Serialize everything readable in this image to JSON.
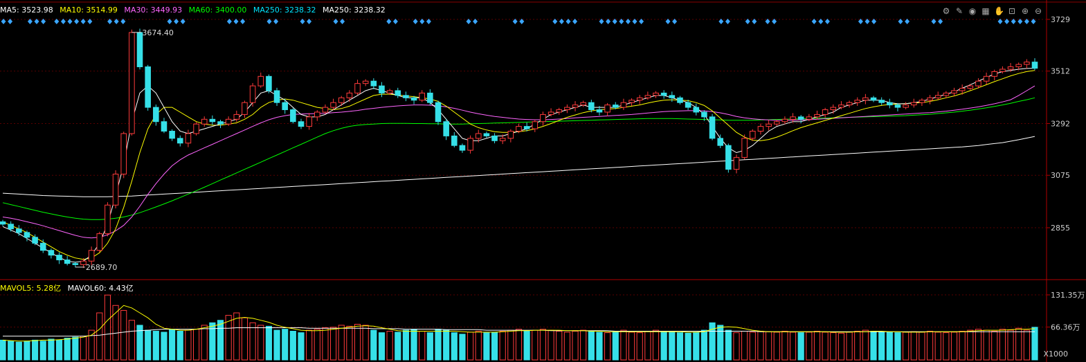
{
  "ma_legend": [
    {
      "label": "MA5: 3523.98",
      "color": "#ffffff"
    },
    {
      "label": "MA10: 3514.99",
      "color": "#ffff00"
    },
    {
      "label": "MA30: 3449.93",
      "color": "#ff66ff"
    },
    {
      "label": "MA60: 3400.00",
      "color": "#00ff00"
    },
    {
      "label": "MA250: 3238.32",
      "color": "#00e5ff"
    },
    {
      "label": "MA250: 3238.32",
      "color": "#ffffff"
    }
  ],
  "vol_legend": [
    {
      "label": "MAVOL5: 5.28亿",
      "color": "#ffff00"
    },
    {
      "label": "MAVOL60: 4.43亿",
      "color": "#ffffff"
    }
  ],
  "up_arrow": "↑",
  "toolbar_icons": [
    "gear-icon",
    "brush-icon",
    "eye-icon",
    "hand-icon",
    "lock-icon",
    "zoom-in-icon",
    "zoom-out-icon"
  ],
  "vol_unit": "X1000",
  "colors": {
    "up": "#ff3b3b",
    "down": "#36e0e8",
    "signal": "#3aa6ff"
  },
  "chart_data": [
    {
      "type": "candlestick",
      "price_ticks": [
        "3729",
        "3512",
        "3292",
        "3075",
        "2855"
      ],
      "price_tick_values": [
        3729,
        3512,
        3292,
        3075,
        2855
      ],
      "ylim": [
        2600,
        3800
      ],
      "annotations": [
        {
          "text": "3674.40",
          "value": 3674.4
        },
        {
          "text": "2689.70",
          "value": 2689.7
        }
      ],
      "closes": [
        2870,
        2850,
        2835,
        2815,
        2790,
        2760,
        2740,
        2720,
        2705,
        2700,
        2715,
        2760,
        2830,
        2950,
        3080,
        3250,
        3674,
        3530,
        3360,
        3300,
        3260,
        3230,
        3210,
        3250,
        3290,
        3310,
        3300,
        3290,
        3310,
        3330,
        3380,
        3450,
        3490,
        3430,
        3380,
        3350,
        3300,
        3280,
        3320,
        3340,
        3360,
        3380,
        3400,
        3420,
        3460,
        3470,
        3450,
        3420,
        3430,
        3410,
        3400,
        3390,
        3420,
        3380,
        3300,
        3240,
        3200,
        3180,
        3230,
        3250,
        3240,
        3220,
        3230,
        3260,
        3280,
        3270,
        3300,
        3330,
        3340,
        3350,
        3360,
        3370,
        3380,
        3350,
        3340,
        3370,
        3360,
        3380,
        3390,
        3400,
        3410,
        3420,
        3410,
        3400,
        3380,
        3360,
        3340,
        3320,
        3230,
        3200,
        3100,
        3150,
        3230,
        3260,
        3280,
        3290,
        3300,
        3310,
        3320,
        3310,
        3320,
        3330,
        3350,
        3360,
        3370,
        3380,
        3390,
        3400,
        3390,
        3380,
        3370,
        3360,
        3370,
        3380,
        3390,
        3400,
        3410,
        3420,
        3430,
        3440,
        3450,
        3470,
        3490,
        3510,
        3520,
        3530,
        3540,
        3550,
        3524
      ],
      "ma5": [
        2860,
        2845,
        2830,
        2810,
        2790,
        2770,
        2750,
        2730,
        2715,
        2710,
        2715,
        2740,
        2790,
        2870,
        2990,
        3120,
        3300,
        3420,
        3450,
        3420,
        3360,
        3300,
        3260,
        3250,
        3260,
        3270,
        3280,
        3290,
        3300,
        3310,
        3340,
        3380,
        3420,
        3430,
        3410,
        3390,
        3360,
        3330,
        3320,
        3320,
        3330,
        3350,
        3370,
        3390,
        3410,
        3430,
        3440,
        3430,
        3420,
        3410,
        3400,
        3400,
        3400,
        3380,
        3350,
        3310,
        3270,
        3230,
        3220,
        3220,
        3230,
        3240,
        3240,
        3250,
        3260,
        3270,
        3290,
        3310,
        3330,
        3340,
        3350,
        3360,
        3370,
        3360,
        3360,
        3360,
        3360,
        3370,
        3380,
        3390,
        3400,
        3410,
        3410,
        3400,
        3390,
        3380,
        3360,
        3330,
        3280,
        3230,
        3190,
        3170,
        3180,
        3200,
        3230,
        3260,
        3280,
        3290,
        3300,
        3300,
        3310,
        3320,
        3330,
        3340,
        3360,
        3370,
        3380,
        3390,
        3390,
        3390,
        3380,
        3375,
        3375,
        3380,
        3385,
        3395,
        3405,
        3415,
        3425,
        3440,
        3455,
        3470,
        3485,
        3500,
        3510,
        3515,
        3520,
        3523,
        3524
      ],
      "ma10": [
        2880,
        2865,
        2850,
        2835,
        2815,
        2795,
        2775,
        2755,
        2740,
        2728,
        2722,
        2728,
        2750,
        2790,
        2850,
        2940,
        3050,
        3170,
        3270,
        3330,
        3360,
        3360,
        3340,
        3320,
        3300,
        3290,
        3285,
        3285,
        3290,
        3295,
        3310,
        3330,
        3360,
        3380,
        3390,
        3395,
        3390,
        3380,
        3370,
        3360,
        3355,
        3350,
        3355,
        3365,
        3380,
        3395,
        3410,
        3415,
        3415,
        3412,
        3408,
        3405,
        3400,
        3395,
        3385,
        3365,
        3340,
        3315,
        3290,
        3275,
        3265,
        3258,
        3255,
        3255,
        3258,
        3262,
        3270,
        3280,
        3292,
        3305,
        3318,
        3328,
        3338,
        3345,
        3350,
        3352,
        3355,
        3360,
        3365,
        3370,
        3378,
        3385,
        3390,
        3392,
        3390,
        3388,
        3380,
        3368,
        3345,
        3315,
        3285,
        3255,
        3235,
        3222,
        3220,
        3225,
        3235,
        3248,
        3262,
        3275,
        3285,
        3295,
        3305,
        3315,
        3325,
        3335,
        3345,
        3355,
        3362,
        3368,
        3372,
        3374,
        3376,
        3378,
        3380,
        3385,
        3392,
        3400,
        3408,
        3418,
        3430,
        3442,
        3455,
        3468,
        3480,
        3492,
        3502,
        3510,
        3515
      ],
      "ma30": [
        2900,
        2895,
        2888,
        2880,
        2872,
        2863,
        2853,
        2843,
        2833,
        2823,
        2815,
        2812,
        2815,
        2825,
        2842,
        2865,
        2900,
        2945,
        2995,
        3040,
        3080,
        3115,
        3140,
        3160,
        3175,
        3190,
        3205,
        3220,
        3235,
        3250,
        3265,
        3280,
        3295,
        3308,
        3318,
        3325,
        3330,
        3332,
        3333,
        3334,
        3335,
        3338,
        3340,
        3343,
        3347,
        3352,
        3356,
        3360,
        3363,
        3366,
        3368,
        3370,
        3370,
        3369,
        3366,
        3362,
        3356,
        3348,
        3340,
        3333,
        3327,
        3322,
        3318,
        3314,
        3311,
        3309,
        3308,
        3308,
        3309,
        3311,
        3313,
        3316,
        3318,
        3320,
        3322,
        3324,
        3326,
        3328,
        3330,
        3333,
        3336,
        3339,
        3342,
        3344,
        3345,
        3346,
        3346,
        3345,
        3342,
        3337,
        3330,
        3322,
        3316,
        3312,
        3309,
        3307,
        3306,
        3306,
        3306,
        3307,
        3308,
        3310,
        3312,
        3314,
        3316,
        3318,
        3320,
        3322,
        3324,
        3326,
        3328,
        3330,
        3332,
        3334,
        3336,
        3338,
        3341,
        3344,
        3348,
        3352,
        3357,
        3362,
        3368,
        3375,
        3383,
        3392,
        3410,
        3430,
        3450
      ],
      "ma60": [
        2960,
        2952,
        2944,
        2936,
        2928,
        2920,
        2913,
        2906,
        2900,
        2895,
        2891,
        2889,
        2889,
        2891,
        2895,
        2900,
        2908,
        2918,
        2930,
        2942,
        2955,
        2968,
        2982,
        2996,
        3010,
        3025,
        3040,
        3055,
        3070,
        3085,
        3100,
        3115,
        3130,
        3145,
        3160,
        3175,
        3190,
        3205,
        3220,
        3235,
        3250,
        3262,
        3272,
        3280,
        3285,
        3288,
        3290,
        3292,
        3293,
        3293,
        3293,
        3292,
        3292,
        3291,
        3291,
        3290,
        3290,
        3290,
        3291,
        3292,
        3293,
        3294,
        3295,
        3296,
        3297,
        3298,
        3299,
        3300,
        3301,
        3302,
        3303,
        3304,
        3305,
        3306,
        3307,
        3308,
        3309,
        3310,
        3311,
        3312,
        3313,
        3313,
        3313,
        3313,
        3312,
        3311,
        3310,
        3309,
        3308,
        3307,
        3306,
        3306,
        3306,
        3306,
        3307,
        3308,
        3309,
        3310,
        3311,
        3312,
        3313,
        3314,
        3315,
        3316,
        3317,
        3318,
        3319,
        3320,
        3321,
        3322,
        3323,
        3324,
        3325,
        3327,
        3329,
        3331,
        3334,
        3337,
        3340,
        3344,
        3348,
        3353,
        3358,
        3364,
        3370,
        3377,
        3385,
        3392,
        3400
      ],
      "ma250": [
        3000,
        2998,
        2996,
        2994,
        2992,
        2990,
        2989,
        2988,
        2987,
        2986,
        2985,
        2985,
        2985,
        2985,
        2986,
        2987,
        2988,
        2990,
        2992,
        2994,
        2996,
        2998,
        3000,
        3002,
        3004,
        3006,
        3008,
        3010,
        3012,
        3014,
        3016,
        3018,
        3020,
        3022,
        3024,
        3026,
        3028,
        3030,
        3032,
        3034,
        3036,
        3038,
        3040,
        3042,
        3044,
        3046,
        3048,
        3050,
        3052,
        3054,
        3056,
        3058,
        3060,
        3062,
        3064,
        3066,
        3068,
        3070,
        3072,
        3074,
        3076,
        3078,
        3080,
        3082,
        3084,
        3086,
        3088,
        3090,
        3092,
        3094,
        3096,
        3098,
        3100,
        3102,
        3104,
        3106,
        3108,
        3110,
        3112,
        3114,
        3116,
        3118,
        3120,
        3122,
        3124,
        3126,
        3128,
        3130,
        3132,
        3134,
        3136,
        3138,
        3140,
        3142,
        3144,
        3146,
        3148,
        3150,
        3152,
        3154,
        3156,
        3158,
        3160,
        3162,
        3164,
        3166,
        3168,
        3170,
        3172,
        3174,
        3176,
        3178,
        3180,
        3182,
        3184,
        3186,
        3188,
        3190,
        3192,
        3194,
        3197,
        3200,
        3204,
        3208,
        3212,
        3218,
        3224,
        3231,
        3238
      ],
      "signal_groups": [
        [
          0,
          1
        ],
        [
          4,
          6
        ],
        [
          8,
          9
        ],
        [
          10,
          13
        ],
        [
          16,
          18
        ],
        [
          25,
          27
        ],
        [
          34,
          36
        ],
        [
          40,
          41
        ],
        [
          45,
          46
        ],
        [
          50,
          51
        ],
        [
          58,
          59
        ],
        [
          62,
          64
        ],
        [
          70,
          71
        ],
        [
          77,
          78
        ],
        [
          83,
          86
        ],
        [
          90,
          96
        ],
        [
          100,
          101
        ],
        [
          108,
          109
        ],
        [
          112,
          113
        ],
        [
          115,
          116
        ],
        [
          122,
          124
        ],
        [
          129,
          131
        ],
        [
          135,
          136
        ],
        [
          140,
          141
        ],
        [
          150,
          155
        ]
      ]
    },
    {
      "type": "bar",
      "volume_ticks": [
        "131.35万",
        "66.36万"
      ],
      "volume_tick_values": [
        131.35,
        66.36
      ],
      "ylim": [
        0,
        135
      ],
      "volumes": [
        40,
        38,
        36,
        38,
        40,
        38,
        42,
        40,
        44,
        46,
        48,
        60,
        95,
        131,
        110,
        100,
        80,
        70,
        60,
        58,
        56,
        62,
        58,
        60,
        62,
        70,
        75,
        80,
        90,
        95,
        85,
        75,
        70,
        68,
        60,
        62,
        58,
        55,
        60,
        62,
        65,
        66,
        70,
        68,
        72,
        70,
        60,
        55,
        58,
        56,
        60,
        62,
        58,
        55,
        62,
        60,
        55,
        52,
        56,
        58,
        55,
        56,
        58,
        60,
        62,
        58,
        60,
        62,
        60,
        58,
        56,
        58,
        60,
        58,
        56,
        55,
        58,
        60,
        56,
        55,
        58,
        60,
        56,
        58,
        55,
        54,
        56,
        60,
        75,
        70,
        60,
        55,
        58,
        56,
        58,
        57,
        56,
        58,
        56,
        55,
        56,
        58,
        56,
        55,
        54,
        56,
        58,
        60,
        58,
        57,
        56,
        55,
        56,
        57,
        56,
        58,
        56,
        55,
        56,
        58,
        60,
        62,
        60,
        58,
        62,
        60,
        64,
        60,
        66
      ],
      "mavol5": [
        40,
        39,
        38,
        38,
        39,
        40,
        40,
        41,
        42,
        44,
        46,
        50,
        62,
        80,
        95,
        110,
        105,
        95,
        85,
        72,
        64,
        62,
        60,
        60,
        62,
        65,
        68,
        72,
        78,
        84,
        86,
        84,
        80,
        76,
        70,
        66,
        63,
        60,
        59,
        59,
        60,
        62,
        64,
        66,
        68,
        69,
        68,
        65,
        62,
        59,
        58,
        58,
        58,
        58,
        58,
        58,
        58,
        57,
        56,
        56,
        56,
        56,
        57,
        58,
        59,
        59,
        60,
        60,
        60,
        60,
        59,
        59,
        59,
        58,
        58,
        57,
        57,
        57,
        57,
        57,
        57,
        57,
        57,
        57,
        57,
        56,
        56,
        57,
        62,
        66,
        67,
        66,
        63,
        60,
        58,
        57,
        57,
        57,
        57,
        57,
        57,
        57,
        57,
        56,
        56,
        56,
        57,
        57,
        58,
        58,
        57,
        57,
        56,
        56,
        56,
        57,
        57,
        57,
        57,
        57,
        58,
        59,
        60,
        60,
        60,
        61,
        62,
        62,
        63
      ],
      "mavol60": [
        48,
        48,
        48,
        48,
        48,
        48,
        48,
        48,
        48,
        48,
        48,
        49,
        50,
        52,
        54,
        56,
        58,
        59,
        60,
        61,
        62,
        62,
        62,
        62,
        62,
        63,
        63,
        64,
        64,
        65,
        65,
        65,
        65,
        65,
        65,
        65,
        65,
        65,
        64,
        64,
        64,
        64,
        64,
        64,
        64,
        64,
        63,
        63,
        63,
        63,
        62,
        62,
        62,
        62,
        62,
        61,
        61,
        61,
        61,
        61,
        60,
        60,
        60,
        60,
        60,
        60,
        60,
        60,
        59,
        59,
        59,
        59,
        59,
        59,
        59,
        59,
        58,
        58,
        58,
        58,
        58,
        58,
        58,
        58,
        58,
        58,
        58,
        58,
        58,
        58,
        58,
        58,
        58,
        58,
        57,
        57,
        57,
        57,
        57,
        57,
        57,
        57,
        57,
        57,
        57,
        57,
        57,
        57,
        57,
        57,
        57,
        57,
        57,
        57,
        57,
        57,
        57,
        57,
        57,
        57,
        57,
        57,
        57,
        57,
        57,
        57,
        57,
        57,
        57
      ]
    }
  ]
}
